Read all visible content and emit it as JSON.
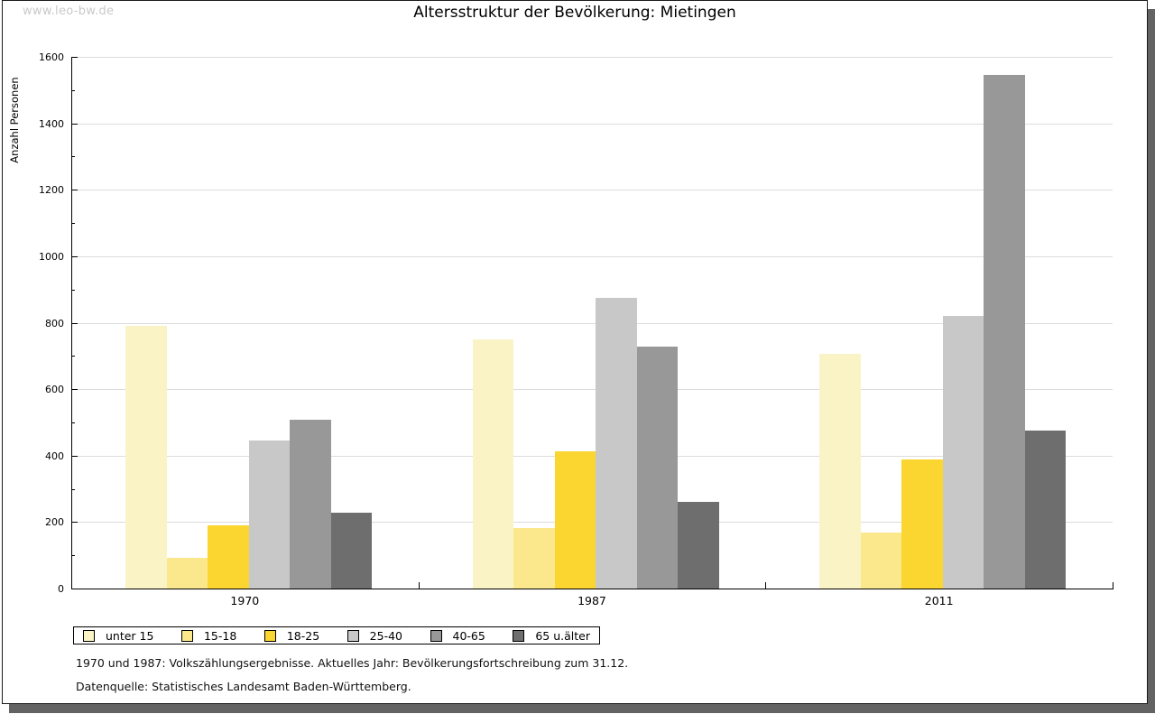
{
  "watermark": "www.leo-bw.de",
  "title": "Altersstruktur der Bevölkerung: Mietingen",
  "footnotes": [
    "1970 und 1987: Volkszählungsergebnisse. Aktuelles Jahr: Bevölkerungsfortschreibung zum 31.12.",
    "Datenquelle: Statistisches Landesamt Baden-Württemberg."
  ],
  "chart_data": {
    "type": "bar",
    "title": "Altersstruktur der Bevölkerung: Mietingen",
    "xlabel": "",
    "ylabel": "Anzahl Personen",
    "categories": [
      "1970",
      "1987",
      "2011"
    ],
    "series": [
      {
        "name": "unter 15",
        "color": "#faf3c6",
        "values": [
          790,
          750,
          706
        ]
      },
      {
        "name": "15-18",
        "color": "#fce88c",
        "values": [
          92,
          182,
          168
        ]
      },
      {
        "name": "18-25",
        "color": "#fbd530",
        "values": [
          190,
          412,
          388
        ]
      },
      {
        "name": "25-40",
        "color": "#c8c8c8",
        "values": [
          445,
          874,
          820
        ]
      },
      {
        "name": "40-65",
        "color": "#989898",
        "values": [
          507,
          728,
          1545
        ]
      },
      {
        "name": "65 u.älter",
        "color": "#6e6e6e",
        "values": [
          228,
          260,
          476
        ]
      }
    ],
    "ylim": [
      0,
      1600
    ],
    "ytick_step": 200,
    "yminor_step": 100,
    "grid": true,
    "legend_position": "bottom-left"
  }
}
